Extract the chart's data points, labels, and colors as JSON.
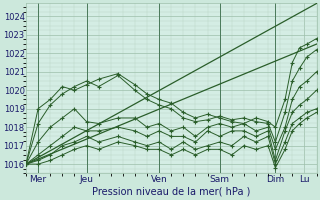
{
  "xlabel": "Pression niveau de la mer( hPa )",
  "bg_color": "#cce8dc",
  "plot_bg_color": "#d4ede4",
  "grid_major_color": "#9dbfaa",
  "grid_minor_color": "#b8d4c4",
  "line_color": "#2a5e2a",
  "ylim": [
    1015.5,
    1024.7
  ],
  "yticks": [
    1016,
    1017,
    1018,
    1019,
    1020,
    1021,
    1022,
    1023,
    1024
  ],
  "xlim": [
    0,
    120
  ],
  "xtick_positions": [
    5,
    25,
    55,
    80,
    103,
    115
  ],
  "xtick_labels": [
    "Mer",
    "Jeu",
    "Ven",
    "Sam",
    "Dim",
    "Lu"
  ],
  "vline_positions": [
    5,
    25,
    55,
    80,
    103
  ],
  "envelope_lines": [
    {
      "x": [
        0,
        120
      ],
      "y": [
        1016.0,
        1024.7
      ]
    },
    {
      "x": [
        0,
        120
      ],
      "y": [
        1016.0,
        1022.5
      ]
    }
  ],
  "series": [
    [
      [
        0,
        1016.0
      ],
      [
        5,
        1019.0
      ],
      [
        10,
        1019.5
      ],
      [
        15,
        1020.2
      ],
      [
        20,
        1020.0
      ],
      [
        25,
        1020.3
      ],
      [
        30,
        1020.6
      ],
      [
        38,
        1020.9
      ],
      [
        45,
        1020.3
      ],
      [
        50,
        1019.8
      ],
      [
        55,
        1019.5
      ],
      [
        60,
        1019.3
      ],
      [
        65,
        1018.8
      ],
      [
        70,
        1018.5
      ],
      [
        75,
        1018.7
      ],
      [
        80,
        1018.5
      ],
      [
        85,
        1018.3
      ],
      [
        90,
        1018.2
      ],
      [
        95,
        1018.5
      ],
      [
        100,
        1018.3
      ],
      [
        103,
        1018.0
      ],
      [
        107,
        1019.5
      ],
      [
        110,
        1021.5
      ],
      [
        113,
        1022.3
      ],
      [
        116,
        1022.5
      ],
      [
        120,
        1022.8
      ]
    ],
    [
      [
        0,
        1016.0
      ],
      [
        5,
        1018.2
      ],
      [
        10,
        1019.2
      ],
      [
        15,
        1019.8
      ],
      [
        20,
        1020.2
      ],
      [
        25,
        1020.5
      ],
      [
        30,
        1020.2
      ],
      [
        38,
        1020.8
      ],
      [
        45,
        1020.0
      ],
      [
        50,
        1019.5
      ],
      [
        55,
        1019.2
      ],
      [
        60,
        1019.0
      ],
      [
        65,
        1018.5
      ],
      [
        70,
        1018.3
      ],
      [
        75,
        1018.4
      ],
      [
        80,
        1018.6
      ],
      [
        85,
        1018.4
      ],
      [
        90,
        1018.5
      ],
      [
        95,
        1018.3
      ],
      [
        100,
        1018.2
      ],
      [
        103,
        1017.2
      ],
      [
        107,
        1018.8
      ],
      [
        110,
        1020.5
      ],
      [
        113,
        1021.2
      ],
      [
        116,
        1021.8
      ],
      [
        120,
        1022.2
      ]
    ],
    [
      [
        0,
        1016.0
      ],
      [
        5,
        1017.2
      ],
      [
        10,
        1018.0
      ],
      [
        15,
        1018.5
      ],
      [
        20,
        1019.0
      ],
      [
        25,
        1018.3
      ],
      [
        30,
        1018.2
      ],
      [
        38,
        1018.5
      ],
      [
        45,
        1018.5
      ],
      [
        50,
        1018.0
      ],
      [
        55,
        1018.2
      ],
      [
        60,
        1017.8
      ],
      [
        65,
        1018.0
      ],
      [
        70,
        1017.5
      ],
      [
        75,
        1018.0
      ],
      [
        80,
        1018.2
      ],
      [
        85,
        1018.0
      ],
      [
        90,
        1018.2
      ],
      [
        95,
        1017.8
      ],
      [
        100,
        1018.0
      ],
      [
        103,
        1016.8
      ],
      [
        107,
        1018.0
      ],
      [
        110,
        1019.5
      ],
      [
        113,
        1020.2
      ],
      [
        116,
        1020.5
      ],
      [
        120,
        1021.0
      ]
    ],
    [
      [
        0,
        1016.0
      ],
      [
        5,
        1016.5
      ],
      [
        10,
        1017.0
      ],
      [
        15,
        1017.5
      ],
      [
        20,
        1018.0
      ],
      [
        25,
        1017.8
      ],
      [
        30,
        1017.8
      ],
      [
        38,
        1018.0
      ],
      [
        45,
        1017.8
      ],
      [
        50,
        1017.5
      ],
      [
        55,
        1017.8
      ],
      [
        60,
        1017.5
      ],
      [
        65,
        1017.5
      ],
      [
        70,
        1017.2
      ],
      [
        75,
        1017.8
      ],
      [
        80,
        1017.5
      ],
      [
        85,
        1017.8
      ],
      [
        90,
        1017.8
      ],
      [
        95,
        1017.5
      ],
      [
        100,
        1017.8
      ],
      [
        103,
        1016.2
      ],
      [
        107,
        1017.8
      ],
      [
        110,
        1018.8
      ],
      [
        113,
        1019.2
      ],
      [
        116,
        1019.5
      ],
      [
        120,
        1020.0
      ]
    ],
    [
      [
        0,
        1016.0
      ],
      [
        5,
        1016.2
      ],
      [
        10,
        1016.5
      ],
      [
        15,
        1017.0
      ],
      [
        20,
        1017.2
      ],
      [
        25,
        1017.5
      ],
      [
        30,
        1017.2
      ],
      [
        38,
        1017.5
      ],
      [
        45,
        1017.2
      ],
      [
        50,
        1017.0
      ],
      [
        55,
        1017.2
      ],
      [
        60,
        1016.8
      ],
      [
        65,
        1017.2
      ],
      [
        70,
        1016.8
      ],
      [
        75,
        1017.0
      ],
      [
        80,
        1017.2
      ],
      [
        85,
        1017.0
      ],
      [
        90,
        1017.5
      ],
      [
        95,
        1017.2
      ],
      [
        100,
        1017.5
      ],
      [
        103,
        1016.0
      ],
      [
        107,
        1017.2
      ],
      [
        110,
        1018.2
      ],
      [
        113,
        1018.5
      ],
      [
        116,
        1018.8
      ],
      [
        120,
        1019.0
      ]
    ],
    [
      [
        0,
        1016.0
      ],
      [
        5,
        1016.0
      ],
      [
        10,
        1016.2
      ],
      [
        15,
        1016.5
      ],
      [
        20,
        1016.8
      ],
      [
        25,
        1017.0
      ],
      [
        30,
        1016.8
      ],
      [
        38,
        1017.2
      ],
      [
        45,
        1017.0
      ],
      [
        50,
        1016.8
      ],
      [
        55,
        1016.8
      ],
      [
        60,
        1016.5
      ],
      [
        65,
        1016.8
      ],
      [
        70,
        1016.5
      ],
      [
        75,
        1016.8
      ],
      [
        80,
        1016.8
      ],
      [
        85,
        1016.5
      ],
      [
        90,
        1017.0
      ],
      [
        95,
        1016.8
      ],
      [
        100,
        1017.0
      ],
      [
        103,
        1015.8
      ],
      [
        107,
        1016.8
      ],
      [
        110,
        1017.8
      ],
      [
        113,
        1018.2
      ],
      [
        116,
        1018.5
      ],
      [
        120,
        1018.8
      ]
    ]
  ]
}
